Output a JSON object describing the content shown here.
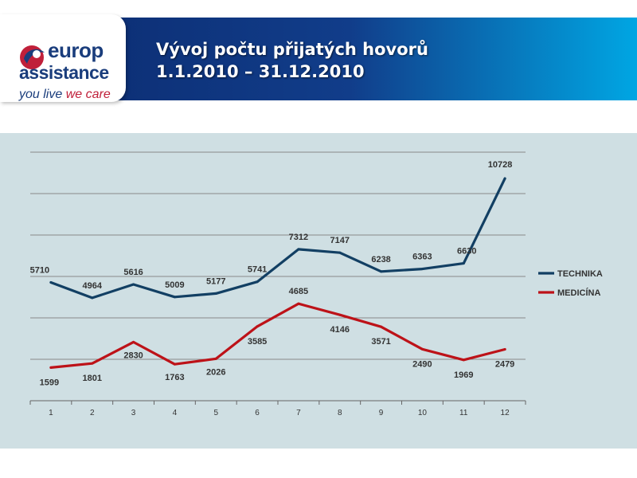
{
  "logo": {
    "line1": "europ",
    "line2": "assistance",
    "tagline_a": "you live ",
    "tagline_b": "we care"
  },
  "header": {
    "title_line1": "Vývoj počtu přijatých hovorů",
    "title_line2": "1.1.2010 – 31.12.2010"
  },
  "colors": {
    "header_dark": "#0b2a6e",
    "header_light": "#00a6e3",
    "technika": "#123f63",
    "medicina": "#bd1218",
    "panel_bg": "#cfdfe3",
    "grid": "#8a8a8a"
  },
  "chart_data": {
    "type": "line",
    "x": [
      "1",
      "2",
      "3",
      "4",
      "5",
      "6",
      "7",
      "8",
      "9",
      "10",
      "11",
      "12"
    ],
    "ylim": [
      0,
      12000
    ],
    "yticks": [
      0,
      2000,
      4000,
      6000,
      8000,
      10000,
      12000
    ],
    "grid": true,
    "legend_position": "right",
    "series": [
      {
        "name": "TECHNIKA",
        "color": "#123f63",
        "values": [
          5710,
          4964,
          5616,
          5009,
          5177,
          5741,
          7312,
          7147,
          6238,
          6363,
          6630,
          10728
        ],
        "labels": [
          "5710",
          "4964",
          "5616",
          "5009",
          "5177",
          "5741",
          "7312",
          "7147",
          "6238",
          "6363",
          "6630",
          "10728"
        ]
      },
      {
        "name": "MEDICÍNA",
        "color": "#bd1218",
        "values": [
          1599,
          1801,
          2830,
          1763,
          2026,
          3585,
          4685,
          4146,
          3571,
          2490,
          1969,
          2479
        ],
        "labels": [
          "1599",
          "1801",
          "2830",
          "1763",
          "2026",
          "3585",
          "4685",
          "4146",
          "3571",
          "2490",
          "1969",
          "2479"
        ]
      }
    ],
    "title": "",
    "xlabel": "",
    "ylabel": ""
  }
}
